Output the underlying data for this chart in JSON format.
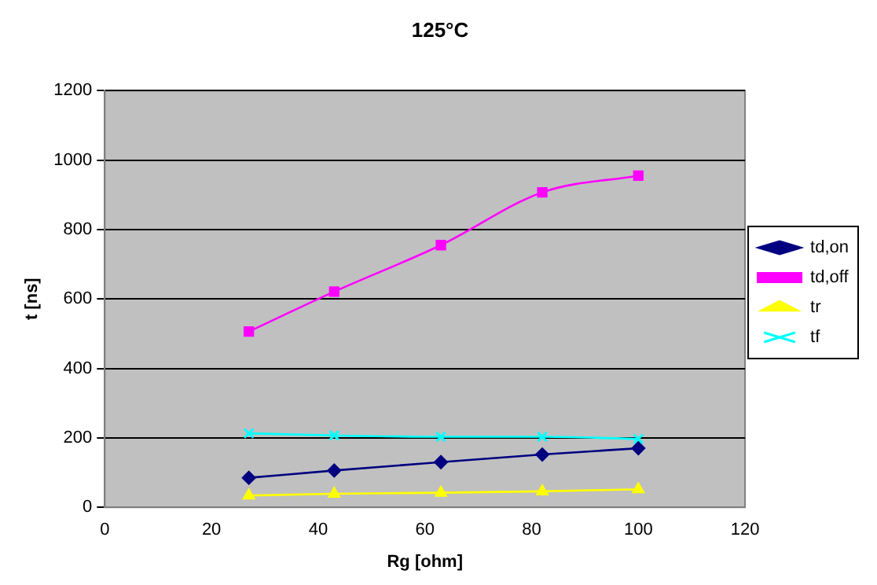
{
  "chart_data": {
    "type": "line",
    "title": "125°C",
    "xlabel": "Rg [ohm]",
    "ylabel": "t [ns]",
    "x": [
      27,
      43,
      63,
      82,
      100
    ],
    "series": [
      {
        "name": "td,on",
        "color": "#000080",
        "marker": "diamond",
        "values": [
          85,
          106,
          130,
          152,
          170
        ]
      },
      {
        "name": "td,off",
        "color": "#ff00ff",
        "marker": "square",
        "values": [
          506,
          621,
          755,
          907,
          955
        ]
      },
      {
        "name": "tr",
        "color": "#ffff00",
        "marker": "triangle",
        "values": [
          34,
          39,
          42,
          46,
          52
        ]
      },
      {
        "name": "tf",
        "color": "#00ffff",
        "marker": "cross",
        "values": [
          213,
          207,
          203,
          203,
          197
        ]
      }
    ],
    "xlim": [
      0,
      120
    ],
    "xticks": [
      0,
      20,
      40,
      60,
      80,
      100,
      120
    ],
    "ylim": [
      0,
      1200
    ],
    "yticks": [
      0,
      200,
      400,
      600,
      800,
      1000,
      1200
    ],
    "grid": "y",
    "legend": "right",
    "line_style": "solid"
  }
}
